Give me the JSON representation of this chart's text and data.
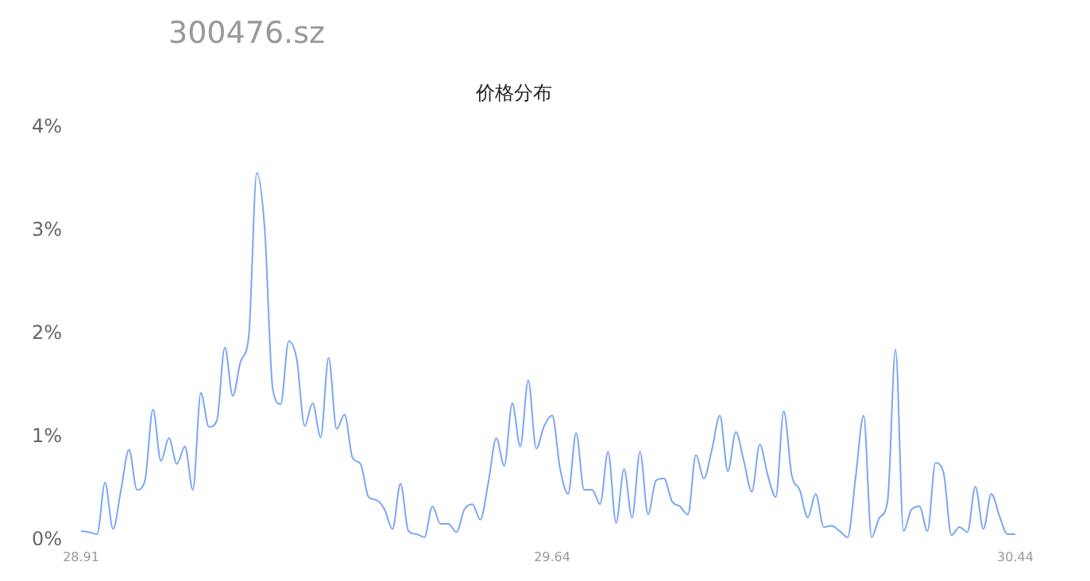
{
  "chart_data": {
    "type": "line",
    "title": "价格分布",
    "subtitle": "300476.sz",
    "categories": [
      "28.91",
      null,
      null,
      null,
      null,
      null,
      null,
      null,
      null,
      null,
      null,
      null,
      null,
      null,
      null,
      null,
      null,
      null,
      null,
      null,
      null,
      null,
      null,
      null,
      null,
      null,
      null,
      null,
      null,
      null,
      null,
      null,
      null,
      null,
      null,
      null,
      null,
      null,
      null,
      null,
      null,
      null,
      null,
      null,
      null,
      null,
      null,
      null,
      null,
      null,
      null,
      null,
      null,
      null,
      null,
      null,
      null,
      null,
      null,
      "29.64",
      null,
      null,
      null,
      null,
      null,
      null,
      null,
      null,
      null,
      null,
      null,
      null,
      null,
      null,
      null,
      null,
      null,
      null,
      null,
      null,
      null,
      null,
      null,
      null,
      null,
      null,
      null,
      null,
      null,
      null,
      null,
      null,
      null,
      null,
      null,
      null,
      null,
      null,
      null,
      null,
      null,
      null,
      null,
      null,
      null,
      null,
      null,
      null,
      null,
      null,
      null,
      null,
      null,
      null,
      null,
      null,
      null,
      "30.44"
    ],
    "series": [
      {
        "color": "#7aa6f5",
        "values": [
          0.09,
          0.08,
          0.06,
          0.56,
          0.11,
          0.49,
          0.88,
          0.49,
          0.58,
          1.27,
          0.77,
          0.99,
          0.74,
          0.91,
          0.49,
          1.43,
          1.1,
          1.16,
          1.87,
          1.4,
          1.74,
          1.98,
          3.56,
          3.01,
          1.47,
          1.32,
          1.93,
          1.76,
          1.11,
          1.33,
          1.0,
          1.77,
          1.08,
          1.22,
          0.8,
          0.74,
          0.42,
          0.39,
          0.3,
          0.11,
          0.55,
          0.09,
          0.06,
          0.03,
          0.33,
          0.16,
          0.16,
          0.08,
          0.3,
          0.35,
          0.2,
          0.56,
          0.99,
          0.72,
          1.33,
          0.91,
          1.55,
          0.89,
          1.11,
          1.21,
          0.69,
          0.45,
          1.04,
          0.49,
          0.49,
          0.35,
          0.86,
          0.17,
          0.69,
          0.22,
          0.86,
          0.25,
          0.58,
          0.6,
          0.38,
          0.33,
          0.25,
          0.83,
          0.6,
          0.88,
          1.21,
          0.67,
          1.05,
          0.77,
          0.47,
          0.93,
          0.63,
          0.42,
          1.25,
          0.63,
          0.49,
          0.22,
          0.45,
          0.13,
          0.14,
          0.09,
          0.03,
          0.61,
          1.21,
          0.03,
          0.22,
          0.38,
          1.85,
          0.09,
          0.3,
          0.33,
          0.09,
          0.75,
          0.66,
          0.05,
          0.13,
          0.08,
          0.52,
          0.11,
          0.45,
          0.24,
          0.06,
          0.06
        ]
      }
    ],
    "ylim": [
      0,
      4
    ],
    "yticks": [
      {
        "value": 0,
        "label": "0%"
      },
      {
        "value": 1,
        "label": "1%"
      },
      {
        "value": 2,
        "label": "2%"
      },
      {
        "value": 3,
        "label": "3%"
      },
      {
        "value": 4,
        "label": "4%"
      }
    ],
    "grid": false,
    "legend": false,
    "marker": "none",
    "line_style": "solid"
  }
}
